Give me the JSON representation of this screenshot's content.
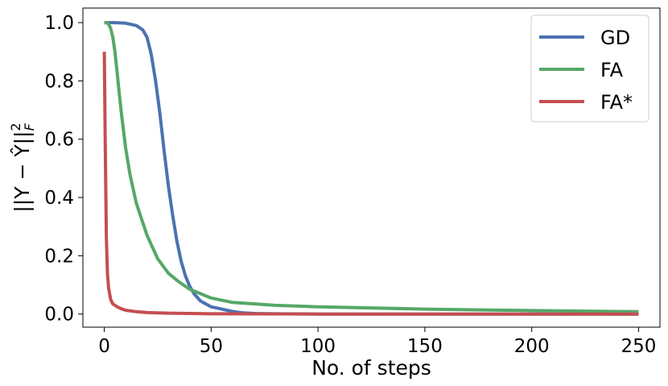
{
  "chart_data": {
    "type": "line",
    "title": "",
    "xlabel": "No. of steps",
    "ylabel": "||Y − Ŷ||²_F",
    "ylabel_parts": {
      "main": "||Y − Ŷ||",
      "sup": "2",
      "sub": "F"
    },
    "xlim": [
      -10,
      260
    ],
    "ylim": [
      -0.045,
      1.05
    ],
    "xticks": [
      0,
      50,
      100,
      150,
      200,
      250
    ],
    "xtick_labels": [
      "0",
      "50",
      "100",
      "150",
      "200",
      "250"
    ],
    "yticks": [
      0.0,
      0.2,
      0.4,
      0.6,
      0.8,
      1.0
    ],
    "ytick_labels": [
      "0.0",
      "0.2",
      "0.4",
      "0.6",
      "0.8",
      "1.0"
    ],
    "grid": false,
    "legend_position": "top-right",
    "series": [
      {
        "name": "GD",
        "color": "#4c72b0",
        "x": [
          0,
          5,
          10,
          15,
          18,
          20,
          22,
          24,
          26,
          28,
          30,
          32,
          34,
          36,
          38,
          40,
          42,
          45,
          50,
          55,
          60,
          65,
          70,
          80,
          100,
          150,
          200,
          250
        ],
        "y": [
          1.0,
          1.0,
          0.998,
          0.99,
          0.975,
          0.95,
          0.89,
          0.8,
          0.69,
          0.56,
          0.44,
          0.34,
          0.25,
          0.18,
          0.13,
          0.095,
          0.07,
          0.045,
          0.025,
          0.017,
          0.009,
          0.004,
          0.002,
          0.001,
          0.0,
          0.0,
          0.0,
          0.0
        ]
      },
      {
        "name": "FA",
        "color": "#55a868",
        "x": [
          0,
          1,
          2,
          3,
          4,
          5,
          6,
          7,
          8,
          10,
          12,
          15,
          20,
          25,
          30,
          35,
          40,
          50,
          60,
          80,
          100,
          150,
          200,
          250
        ],
        "y": [
          1.0,
          1.0,
          0.995,
          0.98,
          0.95,
          0.9,
          0.83,
          0.76,
          0.69,
          0.57,
          0.48,
          0.38,
          0.27,
          0.19,
          0.14,
          0.11,
          0.085,
          0.055,
          0.04,
          0.03,
          0.025,
          0.017,
          0.012,
          0.008
        ]
      },
      {
        "name": "FA*",
        "color": "#c44e52",
        "x": [
          0,
          0.5,
          1,
          1.5,
          2,
          3,
          4,
          6,
          8,
          10,
          15,
          20,
          30,
          50,
          100,
          150,
          200,
          250
        ],
        "y": [
          0.9,
          0.55,
          0.26,
          0.14,
          0.09,
          0.05,
          0.035,
          0.025,
          0.018,
          0.013,
          0.008,
          0.005,
          0.003,
          0.001,
          0.0,
          0.0,
          0.0,
          0.0
        ]
      }
    ]
  }
}
